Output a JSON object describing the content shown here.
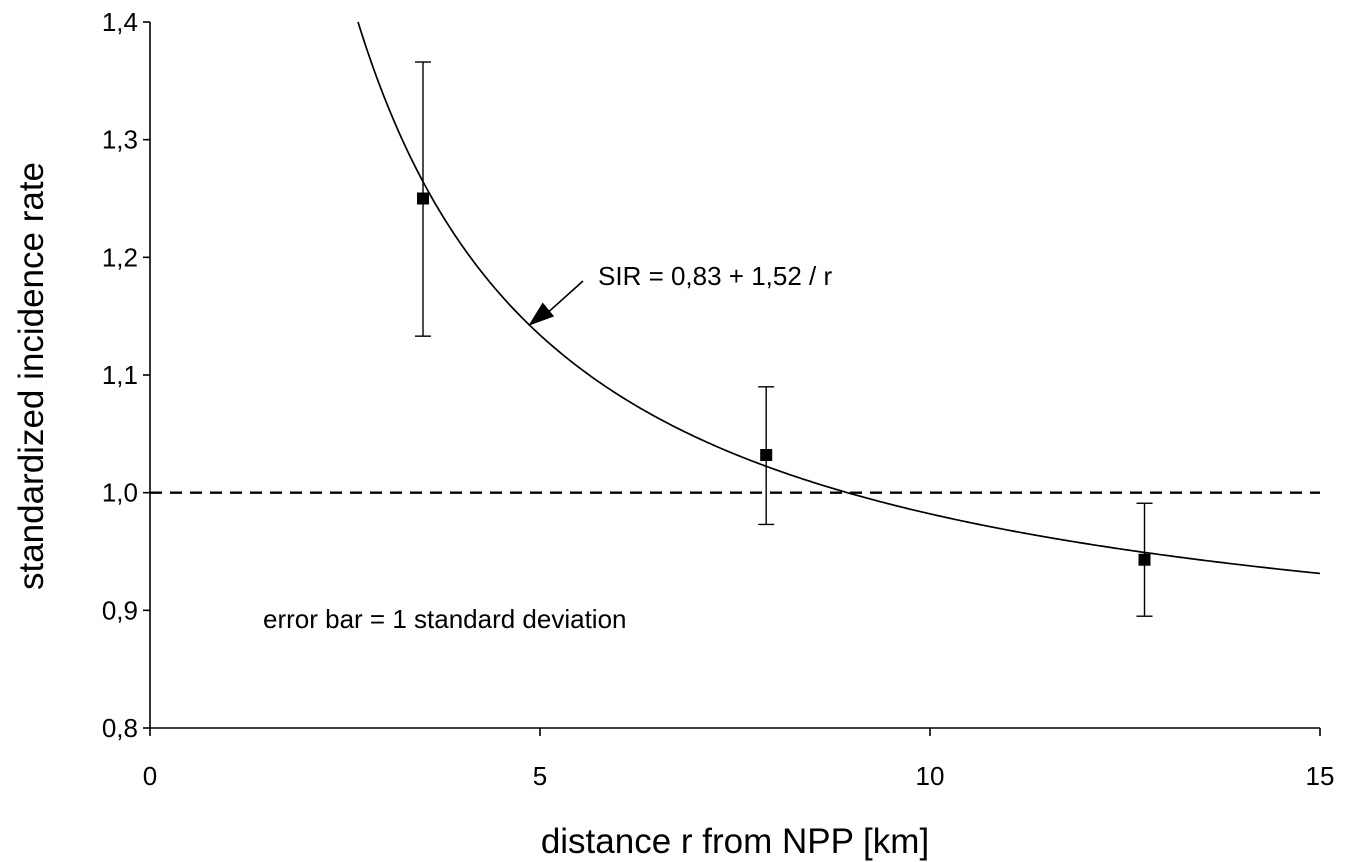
{
  "chart_data": {
    "type": "scatter",
    "xlabel": "distance r from NPP [km]",
    "ylabel": "standardized incidence rate",
    "xlim": [
      0,
      15
    ],
    "ylim": [
      0.8,
      1.4
    ],
    "x_ticks": [
      0,
      5,
      10,
      15
    ],
    "x_tick_labels": [
      "0",
      "5",
      "10",
      "15"
    ],
    "y_ticks": [
      0.8,
      0.9,
      1.0,
      1.1,
      1.2,
      1.3,
      1.4
    ],
    "y_tick_labels": [
      "0,8",
      "0,9",
      "1,0",
      "1,1",
      "1,2",
      "1,3",
      "1,4"
    ],
    "points": [
      {
        "x": 3.5,
        "y": 1.25,
        "err_low": 1.133,
        "err_high": 1.366
      },
      {
        "x": 7.9,
        "y": 1.032,
        "err_low": 0.973,
        "err_high": 1.09
      },
      {
        "x": 12.75,
        "y": 0.943,
        "err_low": 0.895,
        "err_high": 0.991
      }
    ],
    "fit": {
      "formula": "SIR = 0,83 + 1,52 / r",
      "a": 0.83,
      "b": 1.52
    },
    "reference_line": {
      "y": 1.0,
      "style": "dashed"
    },
    "annotations": {
      "fit_label": "SIR = 0,83 + 1,52 / r",
      "error_note": "error bar = 1 standard deviation"
    },
    "grid": false,
    "legend": "none"
  }
}
